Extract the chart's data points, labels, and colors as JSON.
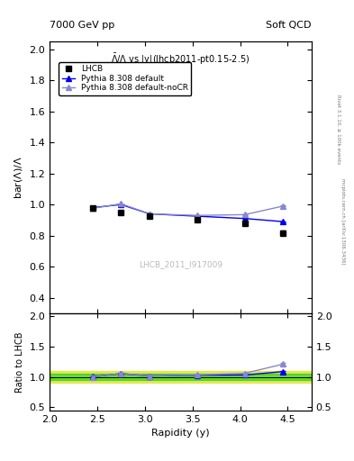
{
  "title_left": "7000 GeV pp",
  "title_right": "Soft QCD",
  "right_label_top": "Rivet 3.1.10, ≥ 100k events",
  "right_label_bot": "mcplots.cern.ch [arXiv:1306.3436]",
  "plot_title": "$\\bar{\\Lambda}/\\Lambda$ vs |y|(lhcb2011-pt0.15-2.5)",
  "watermark": "LHCB_2011_I917009",
  "xlabel": "Rapidity (y)",
  "ylabel": "bar(Λ)/Λ",
  "ylabel_ratio": "Ratio to LHCB",
  "xlim": [
    2.0,
    4.75
  ],
  "ylim_main": [
    0.3,
    2.05
  ],
  "ylim_ratio": [
    0.45,
    2.05
  ],
  "yticks_main": [
    0.4,
    0.6,
    0.8,
    1.0,
    1.2,
    1.4,
    1.6,
    1.8,
    2.0
  ],
  "yticks_ratio": [
    0.5,
    1.0,
    1.5,
    2.0
  ],
  "lhcb_x": [
    2.45,
    2.75,
    3.05,
    3.55,
    4.05,
    4.45
  ],
  "lhcb_y": [
    0.978,
    0.948,
    0.925,
    0.9,
    0.882,
    0.818
  ],
  "lhcb_yerr": [
    0.012,
    0.01,
    0.009,
    0.009,
    0.009,
    0.013
  ],
  "pythia_default_x": [
    2.45,
    2.75,
    3.05,
    3.55,
    4.05,
    4.45
  ],
  "pythia_default_y": [
    0.98,
    1.0,
    0.94,
    0.925,
    0.91,
    0.89
  ],
  "pythia_default_yerr": [
    0.003,
    0.003,
    0.003,
    0.003,
    0.003,
    0.003
  ],
  "pythia_nocr_x": [
    2.45,
    2.75,
    3.05,
    3.55,
    4.05,
    4.45
  ],
  "pythia_nocr_y": [
    0.975,
    1.005,
    0.94,
    0.93,
    0.935,
    0.99
  ],
  "pythia_nocr_yerr": [
    0.003,
    0.003,
    0.003,
    0.003,
    0.003,
    0.003
  ],
  "color_lhcb": "#000000",
  "color_pythia_default": "#0000ee",
  "color_pythia_nocr": "#8888cc",
  "green_band": 0.05,
  "yellow_band": 0.1
}
